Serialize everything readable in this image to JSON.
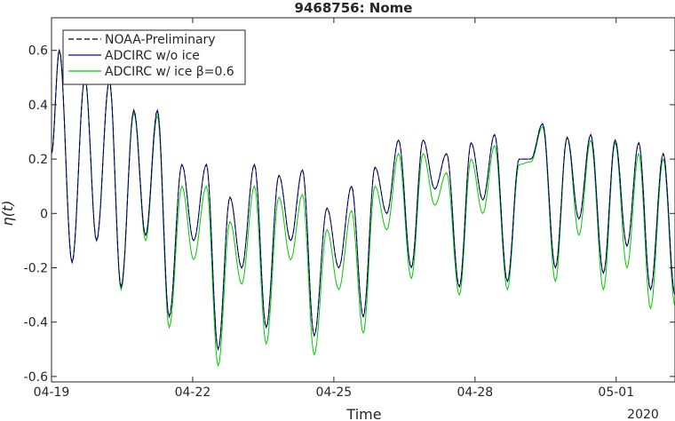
{
  "chart_data": {
    "type": "line",
    "title": "9468756: Nome",
    "xlabel": "Time",
    "ylabel": "η(t)",
    "xlim": [
      "2020-04-19T00:00",
      "2020-05-02T06:00"
    ],
    "ylim": [
      -0.62,
      0.72
    ],
    "x_ticks": [
      "04-19",
      "04-22",
      "04-25",
      "04-28",
      "05-01"
    ],
    "x_tick_dates": [
      "2020-04-19",
      "2020-04-22",
      "2020-04-25",
      "2020-04-28",
      "2020-05-01"
    ],
    "x_secondary_label": "2020",
    "y_ticks": [
      "-0.6",
      "-0.4",
      "-0.2",
      "0",
      "0.2",
      "0.4",
      "0.6"
    ],
    "y_tick_values": [
      -0.6,
      -0.4,
      -0.2,
      0,
      0.2,
      0.4,
      0.6
    ],
    "grid": false,
    "legend_position": "top-left",
    "series": [
      {
        "name": "NOAA-Preliminary",
        "color": "#000000",
        "style": "dashed",
        "extrema": "same as ADCIRC w/o ice"
      },
      {
        "name": "ADCIRC w/o ice",
        "color": "#0000cc",
        "style": "solid",
        "extrema": [
          [
            "2020-04-19T00:00",
            0.22
          ],
          [
            "2020-04-19T04:00",
            0.6
          ],
          [
            "2020-04-19T10:30",
            -0.18
          ],
          [
            "2020-04-19T17:00",
            0.5
          ],
          [
            "2020-04-19T23:00",
            -0.1
          ],
          [
            "2020-04-20T05:30",
            0.49
          ],
          [
            "2020-04-20T11:30",
            -0.27
          ],
          [
            "2020-04-20T18:00",
            0.38
          ],
          [
            "2020-04-21T00:00",
            -0.08
          ],
          [
            "2020-04-21T06:00",
            0.38
          ],
          [
            "2020-04-21T12:00",
            -0.38
          ],
          [
            "2020-04-21T18:30",
            0.18
          ],
          [
            "2020-04-22T00:30",
            -0.1
          ],
          [
            "2020-04-22T07:00",
            0.18
          ],
          [
            "2020-04-22T13:00",
            -0.5
          ],
          [
            "2020-04-22T19:00",
            0.06
          ],
          [
            "2020-04-23T01:00",
            -0.2
          ],
          [
            "2020-04-23T07:30",
            0.18
          ],
          [
            "2020-04-23T13:30",
            -0.42
          ],
          [
            "2020-04-23T20:00",
            0.14
          ],
          [
            "2020-04-24T02:00",
            -0.1
          ],
          [
            "2020-04-24T08:00",
            0.16
          ],
          [
            "2020-04-24T14:00",
            -0.45
          ],
          [
            "2020-04-24T20:30",
            0.02
          ],
          [
            "2020-04-25T02:30",
            -0.2
          ],
          [
            "2020-04-25T09:00",
            0.1
          ],
          [
            "2020-04-25T15:00",
            -0.38
          ],
          [
            "2020-04-25T21:00",
            0.17
          ],
          [
            "2020-04-26T03:00",
            0.0
          ],
          [
            "2020-04-26T09:00",
            0.27
          ],
          [
            "2020-04-26T15:30",
            -0.2
          ],
          [
            "2020-04-26T21:30",
            0.27
          ],
          [
            "2020-04-27T03:30",
            0.09
          ],
          [
            "2020-04-27T09:30",
            0.22
          ],
          [
            "2020-04-27T16:00",
            -0.27
          ],
          [
            "2020-04-27T22:00",
            0.26
          ],
          [
            "2020-04-28T04:00",
            0.05
          ],
          [
            "2020-04-28T10:00",
            0.29
          ],
          [
            "2020-04-28T16:30",
            -0.25
          ],
          [
            "2020-04-28T22:30",
            0.2
          ],
          [
            "2020-04-29T04:30",
            0.2
          ],
          [
            "2020-04-29T10:30",
            0.33
          ],
          [
            "2020-04-29T17:00",
            -0.2
          ],
          [
            "2020-04-29T23:00",
            0.28
          ],
          [
            "2020-04-30T05:00",
            -0.02
          ],
          [
            "2020-04-30T11:00",
            0.29
          ],
          [
            "2020-04-30T17:30",
            -0.22
          ],
          [
            "2020-04-30T23:30",
            0.27
          ],
          [
            "2020-05-01T05:30",
            -0.12
          ],
          [
            "2020-05-01T11:30",
            0.26
          ],
          [
            "2020-05-01T17:30",
            -0.28
          ],
          [
            "2020-05-02T00:00",
            0.22
          ],
          [
            "2020-05-02T06:00",
            -0.3
          ]
        ]
      },
      {
        "name": "ADCIRC w/ ice β=0.6",
        "color": "#00cc00",
        "style": "solid",
        "extrema": [
          [
            "2020-04-19T00:00",
            0.22
          ],
          [
            "2020-04-19T04:00",
            0.6
          ],
          [
            "2020-04-19T10:30",
            -0.18
          ],
          [
            "2020-04-19T17:00",
            0.5
          ],
          [
            "2020-04-19T23:00",
            -0.1
          ],
          [
            "2020-04-20T05:30",
            0.49
          ],
          [
            "2020-04-20T11:30",
            -0.28
          ],
          [
            "2020-04-20T18:00",
            0.37
          ],
          [
            "2020-04-21T00:00",
            -0.1
          ],
          [
            "2020-04-21T06:00",
            0.36
          ],
          [
            "2020-04-21T12:00",
            -0.42
          ],
          [
            "2020-04-21T18:30",
            0.1
          ],
          [
            "2020-04-22T00:30",
            -0.17
          ],
          [
            "2020-04-22T07:00",
            0.1
          ],
          [
            "2020-04-22T13:00",
            -0.56
          ],
          [
            "2020-04-22T19:00",
            -0.03
          ],
          [
            "2020-04-23T01:00",
            -0.26
          ],
          [
            "2020-04-23T07:30",
            0.1
          ],
          [
            "2020-04-23T13:30",
            -0.48
          ],
          [
            "2020-04-23T20:00",
            0.06
          ],
          [
            "2020-04-24T02:00",
            -0.17
          ],
          [
            "2020-04-24T08:00",
            0.07
          ],
          [
            "2020-04-24T14:00",
            -0.52
          ],
          [
            "2020-04-24T20:30",
            -0.06
          ],
          [
            "2020-04-25T02:30",
            -0.28
          ],
          [
            "2020-04-25T09:00",
            0.01
          ],
          [
            "2020-04-25T15:00",
            -0.44
          ],
          [
            "2020-04-25T21:00",
            0.1
          ],
          [
            "2020-04-26T03:00",
            -0.06
          ],
          [
            "2020-04-26T09:00",
            0.22
          ],
          [
            "2020-04-26T15:30",
            -0.24
          ],
          [
            "2020-04-26T21:30",
            0.22
          ],
          [
            "2020-04-27T03:30",
            0.03
          ],
          [
            "2020-04-27T09:30",
            0.15
          ],
          [
            "2020-04-27T16:00",
            -0.3
          ],
          [
            "2020-04-27T22:00",
            0.2
          ],
          [
            "2020-04-28T04:00",
            0.0
          ],
          [
            "2020-04-28T10:00",
            0.25
          ],
          [
            "2020-04-28T16:30",
            -0.28
          ],
          [
            "2020-04-28T22:30",
            0.18
          ],
          [
            "2020-04-29T04:30",
            0.19
          ],
          [
            "2020-04-29T10:30",
            0.32
          ],
          [
            "2020-04-29T17:00",
            -0.25
          ],
          [
            "2020-04-29T23:00",
            0.28
          ],
          [
            "2020-04-30T05:00",
            -0.08
          ],
          [
            "2020-04-30T11:00",
            0.27
          ],
          [
            "2020-04-30T17:30",
            -0.28
          ],
          [
            "2020-04-30T23:30",
            0.26
          ],
          [
            "2020-05-01T05:30",
            -0.2
          ],
          [
            "2020-05-01T11:30",
            0.22
          ],
          [
            "2020-05-01T17:30",
            -0.35
          ],
          [
            "2020-05-02T00:00",
            0.2
          ],
          [
            "2020-05-02T06:00",
            -0.34
          ]
        ]
      }
    ]
  }
}
